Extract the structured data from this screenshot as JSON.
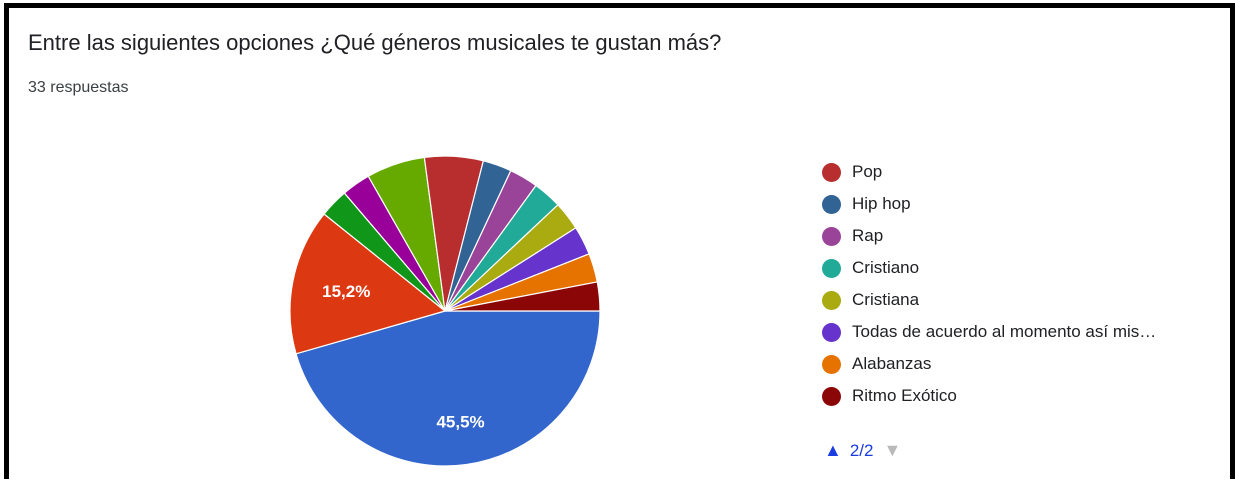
{
  "header": {
    "title": "Entre las siguientes opciones ¿Qué géneros musicales te gustan más?",
    "subtitle": "33 respuestas"
  },
  "chart_data": {
    "type": "pie",
    "title": "Entre las siguientes opciones ¿Qué géneros musicales te gustan más?",
    "total_responses": 33,
    "slices": [
      {
        "value": 45.5,
        "label": "45,5%",
        "color": "#3366cc"
      },
      {
        "value": 15.2,
        "label": "15,2%",
        "color": "#dc3912"
      },
      {
        "value": 3.0,
        "label": "",
        "color": "#109618"
      },
      {
        "value": 3.0,
        "label": "",
        "color": "#990099"
      },
      {
        "value": 6.1,
        "label": "",
        "color": "#66aa00"
      },
      {
        "value": 6.1,
        "label": "Pop",
        "color": "#b82e2e"
      },
      {
        "value": 3.0,
        "label": "Hip hop",
        "color": "#316395"
      },
      {
        "value": 3.0,
        "label": "Rap",
        "color": "#994499"
      },
      {
        "value": 3.0,
        "label": "Cristiano",
        "color": "#22aa99"
      },
      {
        "value": 3.0,
        "label": "Cristiana",
        "color": "#aaaa11"
      },
      {
        "value": 3.0,
        "label": "Todas de acuerdo al momento así mis…",
        "color": "#6633cc"
      },
      {
        "value": 3.0,
        "label": "Alabanzas",
        "color": "#e67300"
      },
      {
        "value": 3.0,
        "label": "Ritmo Exótico",
        "color": "#8b0707"
      }
    ],
    "legend": {
      "placement": "right",
      "items": [
        {
          "label": "Pop",
          "color": "#b82e2e"
        },
        {
          "label": "Hip hop",
          "color": "#316395"
        },
        {
          "label": "Rap",
          "color": "#994499"
        },
        {
          "label": "Cristiano",
          "color": "#22aa99"
        },
        {
          "label": "Cristiana",
          "color": "#aaaa11"
        },
        {
          "label": "Todas de acuerdo al momento así mis…",
          "color": "#6633cc"
        },
        {
          "label": "Alabanzas",
          "color": "#e67300"
        },
        {
          "label": "Ritmo Exótico",
          "color": "#8b0707"
        }
      ]
    }
  },
  "pager": {
    "up_icon": "triangle-up-icon",
    "page": "2/2",
    "down_icon": "triangle-down-icon"
  }
}
